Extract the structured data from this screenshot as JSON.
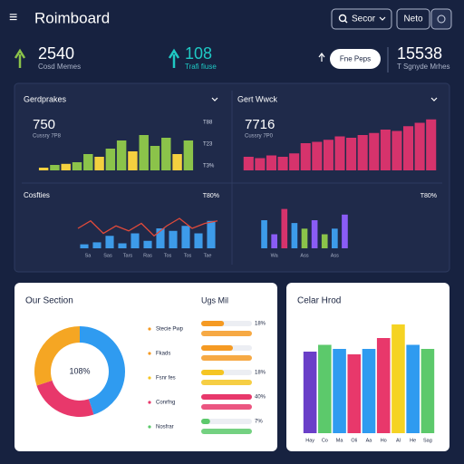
{
  "header": {
    "menu": "≡",
    "title": "Roimboard",
    "search": "Secor",
    "button": "Neto"
  },
  "stats": [
    {
      "value": 2540,
      "label": "Cosd Memes"
    },
    {
      "value": 108,
      "label": "Trafi fiuse"
    },
    {
      "value": 15538,
      "label": "T Sgnyde Mrhes"
    }
  ],
  "action_button": "Fne Peps",
  "panels": {
    "top_left": {
      "title": "Gerdprakes",
      "value": 750,
      "caption": "Cussry 7P8",
      "ticks": [
        "T88",
        "T23",
        "T3%"
      ],
      "chart": {
        "type": "bar",
        "ylim": [
          0,
          100
        ],
        "values": [
          5,
          10,
          12,
          15,
          30,
          25,
          40,
          55,
          35,
          65,
          45,
          60,
          30,
          55
        ],
        "colors": [
          "#f4d03f",
          "#8bc34a",
          "#f4d03f",
          "#8bc34a",
          "#8bc34a",
          "#f4d03f",
          "#8bc34a",
          "#8bc34a",
          "#f4d03f",
          "#8bc34a",
          "#8bc34a",
          "#8bc34a",
          "#f4d03f",
          "#8bc34a"
        ]
      }
    },
    "top_right": {
      "title": "Gert Wwck",
      "value": 7716,
      "caption": "Cussry 7P0",
      "chart": {
        "type": "bar",
        "ylim": [
          0,
          100
        ],
        "values": [
          20,
          18,
          22,
          20,
          25,
          40,
          42,
          45,
          50,
          48,
          52,
          55,
          60,
          58,
          65,
          70,
          75
        ],
        "color": "#d6336c"
      }
    },
    "bottom_left": {
      "title": "Cosfties",
      "badge": "T80%",
      "chart": {
        "type": "bar",
        "ylim": [
          0,
          100
        ],
        "values": [
          8,
          12,
          25,
          10,
          30,
          15,
          40,
          35,
          45,
          30,
          55
        ],
        "color": "#3d9be9",
        "line": {
          "color": "#e04a3a",
          "values": [
            40,
            55,
            30,
            45,
            35,
            50,
            25,
            45,
            60,
            40,
            50,
            55
          ]
        },
        "categories": [
          "Sa",
          "Sas",
          "Tars",
          "Ras",
          "Tos",
          "Tos",
          "Tae"
        ]
      }
    },
    "bottom_right": {
      "title": "T80%",
      "chart": {
        "type": "bar",
        "ylim": [
          0,
          100
        ],
        "values": [
          50,
          25,
          70,
          45,
          35,
          50,
          25,
          35,
          60
        ],
        "colors": [
          "#3d9be9",
          "#8a5cf6",
          "#d6336c",
          "#3d9be9",
          "#8bc34a",
          "#8a5cf6",
          "#8bc34a",
          "#3d9be9",
          "#8a5cf6"
        ],
        "categories": [
          "Wa",
          "Ass",
          "Ass"
        ]
      }
    }
  },
  "section": {
    "title": "Our Section",
    "list_title": "Ugs Mil",
    "donut": {
      "type": "pie",
      "center": "108%",
      "values": [
        45,
        25,
        30
      ],
      "colors": [
        "#2f9bf0",
        "#e8386b",
        "#f5a623"
      ]
    },
    "rows": [
      {
        "label": "Stecie Pwp",
        "value": 18,
        "value_label": "18%",
        "color": "#f59a23"
      },
      {
        "label": "Fkads",
        "value": 25,
        "color": "#f59a23"
      },
      {
        "label": "Fsnr fes",
        "value": 18,
        "value_label": "18%",
        "color": "#f5c523"
      },
      {
        "label": "Conrfng",
        "value": 40,
        "value_label": "40%",
        "color": "#e8386b"
      },
      {
        "label": "Nosfrar",
        "value": 7,
        "value_label": "7%",
        "color": "#5cc96b"
      }
    ]
  },
  "color_card": {
    "title": "Celar Hrod",
    "chart": {
      "type": "bar",
      "ylim": [
        0,
        100
      ],
      "values": [
        60,
        65,
        62,
        58,
        62,
        70,
        80,
        65,
        62
      ],
      "colors": [
        "#6a3fc8",
        "#5cc96b",
        "#2f9bf0",
        "#e8386b",
        "#2f9bf0",
        "#e8386b",
        "#f5d323",
        "#2f9bf0",
        "#5cc96b"
      ],
      "categories": [
        "Hay",
        "Co",
        "Ma",
        "Oli",
        "Aa",
        "Ho",
        "Al",
        "He",
        "Sag"
      ]
    }
  }
}
